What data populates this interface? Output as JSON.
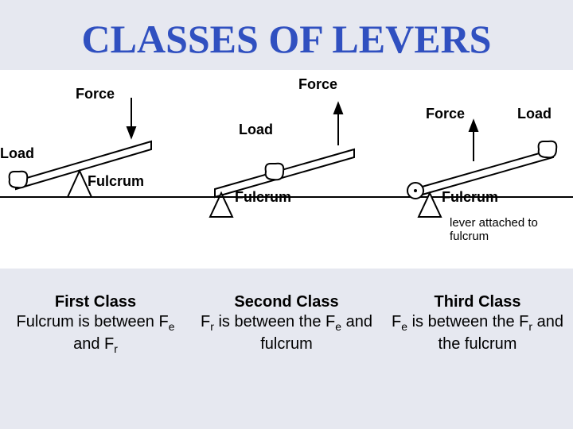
{
  "title": "CLASSES OF LEVERS",
  "title_color": "#3050c0",
  "background_color": "#e6e8f0",
  "strip_background": "#ffffff",
  "panels": [
    {
      "force_label": "Force",
      "load_label": "Load",
      "fulcrum_label": "Fulcrum",
      "caption_title": "First Class",
      "caption_body_html": "Fulcrum is between F<sub>e</sub> and F<sub>r</sub>"
    },
    {
      "force_label": "Force",
      "load_label": "Load",
      "fulcrum_label": "Fulcrum",
      "caption_title": "Second Class",
      "caption_body_html": "F<sub>r</sub> is between the F<sub>e</sub> and fulcrum"
    },
    {
      "force_label": "Force",
      "load_label": "Load",
      "fulcrum_label": "Fulcrum",
      "attached_note": "lever attached to fulcrum",
      "caption_title": "Third Class",
      "caption_body_html": "F<sub>e</sub> is between the F<sub>r</sub> and the fulcrum"
    }
  ],
  "stroke_color": "#000000",
  "stroke_width": 2,
  "label_fontsize": 18,
  "label_fontweight": "bold"
}
